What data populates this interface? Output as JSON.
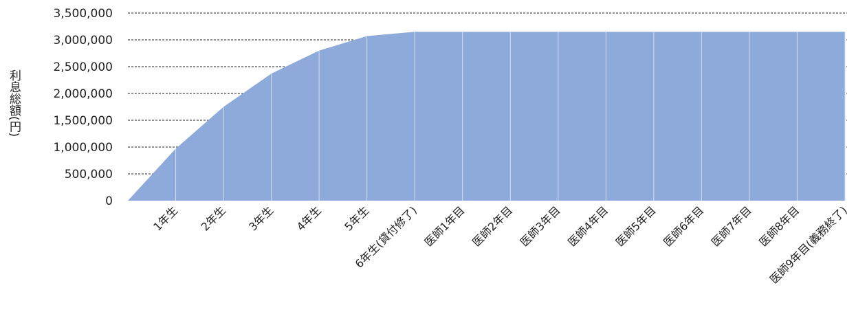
{
  "chart_data": {
    "type": "area",
    "title": "",
    "xlabel": "",
    "ylabel": "利息総額(円)",
    "ylim": [
      0,
      3500000
    ],
    "yticks": [
      "0",
      "500,000",
      "1,000,000",
      "1,500,000",
      "2,000,000",
      "2,500,000",
      "3,000,000",
      "3,500,000"
    ],
    "grid": true,
    "legend": "none",
    "colors": {
      "fill": "#8eaadb",
      "divider": "#d6deef",
      "grid": "#222222"
    },
    "categories": [
      "",
      "1年生",
      "2年生",
      "3年生",
      "4年生",
      "5年生",
      "6年生(貸付修了)",
      "医師1年目",
      "医師2年目",
      "医師3年目",
      "医師4年目",
      "医師5年目",
      "医師6年目",
      "医師7年目",
      "医師8年目",
      "医師9年目(義務終了)"
    ],
    "series": [
      {
        "values": [
          0,
          970000,
          1750000,
          2370000,
          2800000,
          3070000,
          3150000,
          3150000,
          3150000,
          3150000,
          3150000,
          3150000,
          3150000,
          3150000,
          3150000,
          3150000
        ]
      }
    ]
  }
}
